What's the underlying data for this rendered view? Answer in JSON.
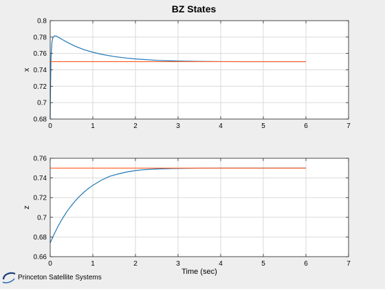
{
  "figure": {
    "title": "BZ States",
    "logo_text": "Princeton Satellite Systems"
  },
  "colors": {
    "background": "#eeeeee",
    "axes_bg": "#ffffff",
    "grid": "#d9d9d9",
    "state_line": "#1f77b4",
    "target_line": "#ff5a1f"
  },
  "chart_data": [
    {
      "type": "line",
      "title": "BZ States",
      "xlabel": "",
      "ylabel": "x",
      "xlim": [
        0,
        7
      ],
      "ylim": [
        0.68,
        0.8
      ],
      "xticks": [
        0,
        1,
        2,
        3,
        4,
        5,
        6,
        7
      ],
      "yticks": [
        0.68,
        0.7,
        0.72,
        0.74,
        0.76,
        0.78,
        0.8
      ],
      "ytick_labels": [
        "0.68",
        "0.7",
        "0.72",
        "0.74",
        "0.76",
        "0.78",
        "0.8"
      ],
      "grid": true,
      "series": [
        {
          "x": [
            0,
            0.01,
            0.02,
            0.04,
            0.06,
            0.1,
            0.15,
            0.2,
            0.3,
            0.4,
            0.5,
            0.6,
            0.8,
            1.0,
            1.2,
            1.5,
            1.8,
            2.0,
            2.5,
            3.0,
            3.5,
            4.0,
            4.5,
            5.0,
            5.5,
            6.0
          ],
          "y": [
            0.68,
            0.725,
            0.755,
            0.773,
            0.779,
            0.7815,
            0.781,
            0.7795,
            0.7765,
            0.7735,
            0.771,
            0.7685,
            0.7645,
            0.7615,
            0.759,
            0.7562,
            0.7543,
            0.7533,
            0.7516,
            0.7507,
            0.7503,
            0.7501,
            0.75,
            0.75,
            0.75,
            0.75
          ]
        },
        {
          "x": [
            0,
            6
          ],
          "y": [
            0.75,
            0.75
          ]
        }
      ]
    },
    {
      "type": "line",
      "xlabel": "Time (sec)",
      "ylabel": "z",
      "xlim": [
        0,
        7
      ],
      "ylim": [
        0.66,
        0.76
      ],
      "xticks": [
        0,
        1,
        2,
        3,
        4,
        5,
        6,
        7
      ],
      "yticks": [
        0.66,
        0.68,
        0.7,
        0.72,
        0.74,
        0.76
      ],
      "ytick_labels": [
        "0.66",
        "0.68",
        "0.7",
        "0.72",
        "0.74",
        "0.76"
      ],
      "grid": true,
      "series": [
        {
          "x": [
            0,
            0.1,
            0.2,
            0.3,
            0.4,
            0.5,
            0.6,
            0.7,
            0.8,
            0.9,
            1.0,
            1.2,
            1.4,
            1.6,
            1.8,
            2.0,
            2.2,
            2.5,
            2.8,
            3.0,
            3.5,
            4.0,
            4.5,
            5.0,
            5.5,
            6.0
          ],
          "y": [
            0.674,
            0.6836,
            0.6921,
            0.6996,
            0.7063,
            0.7121,
            0.7173,
            0.7218,
            0.7259,
            0.7294,
            0.7325,
            0.7377,
            0.7417,
            0.7441,
            0.7461,
            0.7475,
            0.7484,
            0.7491,
            0.7495,
            0.7497,
            0.7499,
            0.75,
            0.75,
            0.75,
            0.75,
            0.75
          ]
        },
        {
          "x": [
            0,
            6
          ],
          "y": [
            0.75,
            0.75
          ]
        }
      ]
    }
  ]
}
